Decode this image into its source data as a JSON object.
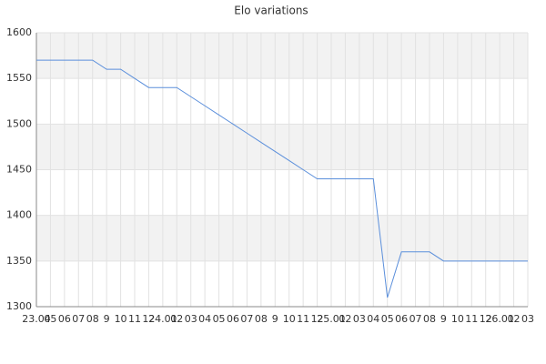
{
  "chart_data": {
    "type": "line",
    "title": "Elo variations",
    "categories": [
      "23.04",
      "05",
      "06",
      "07",
      "08",
      "9",
      "10",
      "11",
      "12",
      "24.01",
      "02",
      "03",
      "04",
      "05",
      "06",
      "07",
      "08",
      "9",
      "10",
      "11",
      "12",
      "25.01",
      "02",
      "03",
      "04",
      "05",
      "06",
      "07",
      "08",
      "9",
      "10",
      "11",
      "12",
      "26.01",
      "02",
      "03"
    ],
    "series": [
      {
        "name": "Elo",
        "color": "#5b8fdb",
        "values": [
          1570,
          1570,
          1570,
          1570,
          1570,
          1560,
          1560,
          1550,
          1540,
          1540,
          1540,
          1530,
          1520,
          1510,
          1500,
          1490,
          1480,
          1470,
          1460,
          1450,
          1440,
          1440,
          1440,
          1440,
          1440,
          1310,
          1360,
          1360,
          1360,
          1350,
          1350,
          1350,
          1350,
          1350,
          1350,
          1350
        ]
      }
    ],
    "ylim": [
      1300,
      1600
    ],
    "yticks": [
      1300,
      1350,
      1400,
      1450,
      1500,
      1550,
      1600
    ],
    "grid": true,
    "band_color": "#f2f2f2"
  }
}
